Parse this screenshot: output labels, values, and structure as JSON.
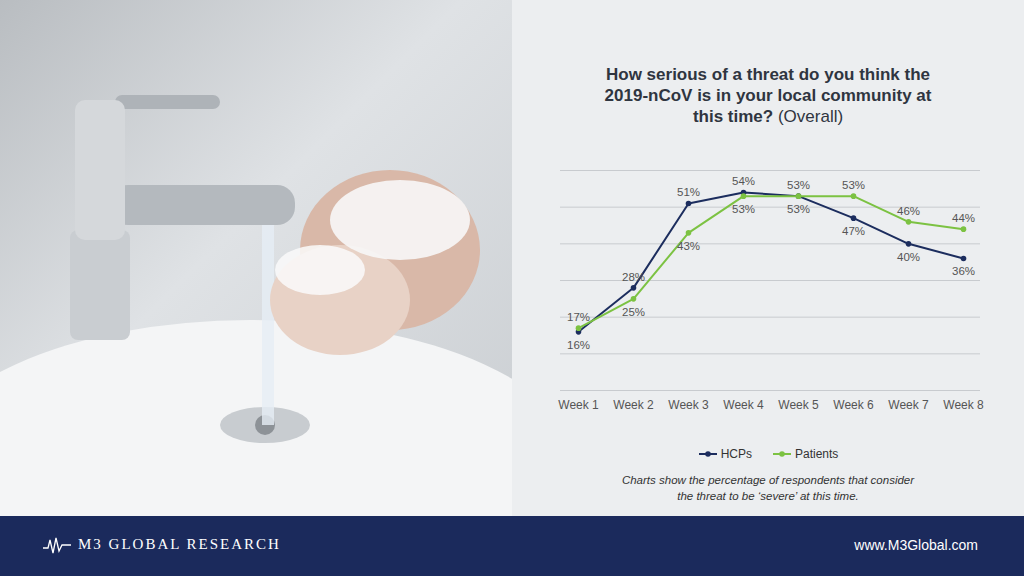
{
  "chart_data": {
    "type": "line",
    "title": "How serious of a threat do you think the 2019-nCoV is in your local community at this time?",
    "subtitle": "(Overall)",
    "caption": "Charts show the percentage of respondents that consider the threat to be ‘severe’ at this time.",
    "categories": [
      "Week 1",
      "Week 2",
      "Week 3",
      "Week 4",
      "Week 5",
      "Week 6",
      "Week 7",
      "Week 8"
    ],
    "series": [
      {
        "name": "HCPs",
        "color": "#1c2d5e",
        "values": [
          16,
          28,
          51,
          54,
          53,
          47,
          40,
          36
        ],
        "value_labels": [
          "16%",
          "28%",
          "51%",
          "54%",
          "53%",
          "47%",
          "40%",
          "36%"
        ]
      },
      {
        "name": "Patients",
        "color": "#7cc242",
        "values": [
          17,
          25,
          43,
          53,
          53,
          53,
          46,
          44
        ],
        "value_labels": [
          "17%",
          "25%",
          "43%",
          "53%",
          "53%",
          "53%",
          "46%",
          "44%"
        ]
      }
    ],
    "ylim": [
      0,
      60
    ],
    "yticks": [
      0,
      10,
      20,
      30,
      40,
      50,
      60
    ],
    "grid": true,
    "tick_labels": "x",
    "data_labels": true,
    "legend": "bottom",
    "marker": "circle"
  },
  "footer": {
    "brand": "M3 GLOBAL RESEARCH",
    "url": "www.M3Global.com"
  }
}
